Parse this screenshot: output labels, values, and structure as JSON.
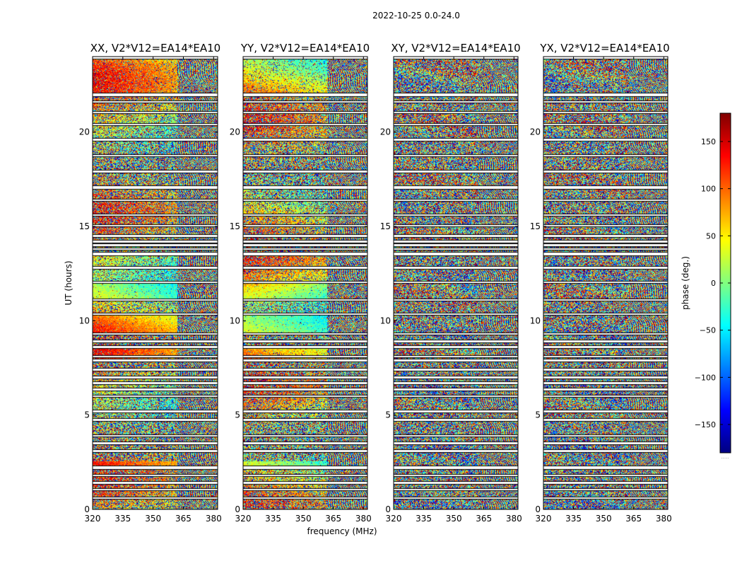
{
  "chart_data": {
    "type": "heatmap",
    "suptitle": "2022-10-25 0.0-24.0",
    "panels": [
      {
        "title": "XX, V2*V12=EA14*EA10",
        "mode": "parallel"
      },
      {
        "title": "YY, V2*V12=EA14*EA10",
        "mode": "parallel"
      },
      {
        "title": "XY, V2*V12=EA14*EA10",
        "mode": "cross"
      },
      {
        "title": "YX, V2*V12=EA14*EA10",
        "mode": "cross"
      }
    ],
    "xlabel": "frequency (MHz)",
    "ylabel": "UT (hours)",
    "xlim": [
      320,
      382
    ],
    "ylim": [
      0,
      24
    ],
    "x_ticks": [
      "320",
      "335",
      "350",
      "365",
      "380"
    ],
    "x_tick_values": [
      320,
      335,
      350,
      365,
      380
    ],
    "y_ticks": [
      "0",
      "5",
      "10",
      "15",
      "20"
    ],
    "y_tick_values": [
      0,
      5,
      10,
      15,
      20
    ],
    "colorbar": {
      "label": "phase (deg.)",
      "range": [
        -180,
        180
      ],
      "ticks": [
        "150",
        "100",
        "50",
        "0",
        "−50",
        "−100",
        "−150"
      ],
      "tick_values": [
        150,
        100,
        50,
        0,
        -50,
        -100,
        -150
      ],
      "colormap": "jet"
    },
    "flagged_ut_intervals": [
      [
        21.9,
        22.05
      ],
      [
        21.55,
        21.62
      ],
      [
        21.0,
        21.08
      ],
      [
        20.35,
        20.45
      ],
      [
        19.55,
        19.65
      ],
      [
        18.7,
        18.8
      ],
      [
        17.85,
        17.95
      ],
      [
        17.0,
        17.15
      ],
      [
        16.35,
        16.42
      ],
      [
        15.55,
        15.65
      ],
      [
        15.0,
        15.08
      ],
      [
        14.45,
        14.55
      ],
      [
        14.15,
        14.25
      ],
      [
        13.95,
        14.05
      ],
      [
        13.75,
        13.85
      ],
      [
        13.45,
        13.6
      ],
      [
        12.75,
        12.85
      ],
      [
        12.0,
        12.08
      ],
      [
        11.05,
        11.15
      ],
      [
        10.3,
        10.38
      ],
      [
        9.25,
        9.35
      ],
      [
        8.85,
        8.95
      ],
      [
        8.55,
        8.65
      ],
      [
        8.05,
        8.12
      ],
      [
        7.85,
        7.95
      ],
      [
        7.35,
        7.45
      ],
      [
        6.95,
        7.05
      ],
      [
        6.65,
        6.75
      ],
      [
        6.3,
        6.4
      ],
      [
        5.95,
        6.05
      ],
      [
        5.15,
        5.25
      ],
      [
        4.7,
        4.8
      ],
      [
        3.85,
        3.95
      ],
      [
        3.45,
        3.55
      ],
      [
        3.05,
        3.15
      ],
      [
        2.15,
        2.3
      ],
      [
        1.75,
        1.85
      ],
      [
        1.35,
        1.45
      ],
      [
        1.0,
        1.08
      ],
      [
        0.55,
        0.62
      ]
    ],
    "flag_gap_after_hours": 23.9
  }
}
